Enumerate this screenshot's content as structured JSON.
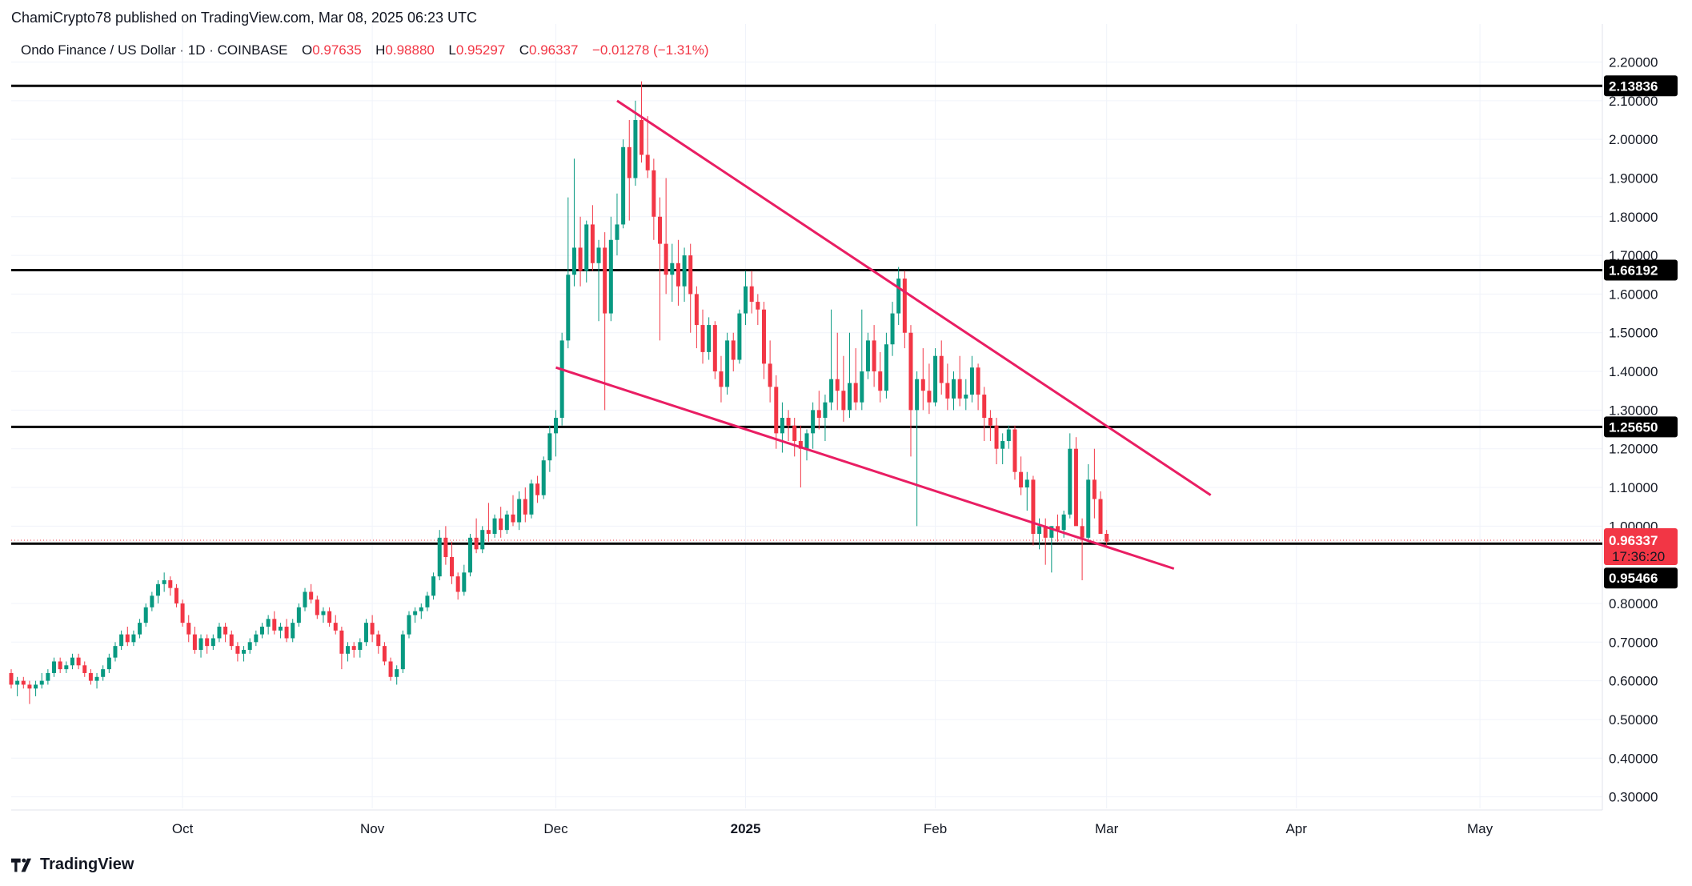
{
  "publisher": "ChamiCrypto78 published on TradingView.com, Mar 08, 2025 06:23 UTC",
  "legend": {
    "symbol": "Ondo Finance / US Dollar · 1D · COINBASE",
    "o_label": "O",
    "o_value": "0.97635",
    "h_label": "H",
    "h_value": "0.98880",
    "l_label": "L",
    "l_value": "0.95297",
    "c_label": "C",
    "c_value": "0.96337",
    "change": "−0.01278 (−1.31%)"
  },
  "footer": {
    "brand": "TradingView",
    "logo_icon": "tradingview-logo-icon"
  },
  "colors": {
    "up": "#089981",
    "down": "#f23645",
    "trendline": "#e91e63",
    "level": "#000000",
    "grid": "#f0f3fa"
  },
  "chart_data": {
    "type": "candlestick",
    "ylim": [
      0.25,
      2.25
    ],
    "y_ticks": [
      "2.20000",
      "2.10000",
      "2.00000",
      "1.90000",
      "1.80000",
      "1.70000",
      "1.60000",
      "1.50000",
      "1.40000",
      "1.30000",
      "1.20000",
      "1.10000",
      "1.00000",
      "0.80000",
      "0.70000",
      "0.60000",
      "0.50000",
      "0.40000",
      "0.30000"
    ],
    "y_tick_values": [
      2.2,
      2.1,
      2.0,
      1.9,
      1.8,
      1.7,
      1.6,
      1.5,
      1.4,
      1.3,
      1.2,
      1.1,
      1.0,
      0.8,
      0.7,
      0.6,
      0.5,
      0.4,
      0.3
    ],
    "x_ticks": [
      {
        "label": "Oct",
        "date": "2024-10-01"
      },
      {
        "label": "Nov",
        "date": "2024-11-01"
      },
      {
        "label": "Dec",
        "date": "2024-12-01"
      },
      {
        "label": "2025",
        "date": "2025-01-01"
      },
      {
        "label": "Feb",
        "date": "2025-02-01"
      },
      {
        "label": "Mar",
        "date": "2025-03-01"
      },
      {
        "label": "Apr",
        "date": "2025-04-01"
      },
      {
        "label": "May",
        "date": "2025-05-01"
      }
    ],
    "xlim": [
      "2024-09-03",
      "2025-05-21"
    ],
    "horizontal_levels": [
      {
        "value": 2.13836,
        "label": "2.13836"
      },
      {
        "value": 1.66192,
        "label": "1.66192"
      },
      {
        "value": 1.2565,
        "label": "1.25650"
      },
      {
        "value": 0.95466,
        "label": "0.95466"
      }
    ],
    "last_price": {
      "value": 0.96337,
      "label": "0.96337",
      "countdown": "17:36:20"
    },
    "trendlines": [
      {
        "name": "upper",
        "from": {
          "date": "2024-12-11",
          "price": 2.1
        },
        "to": {
          "date": "2025-03-18",
          "price": 1.08
        }
      },
      {
        "name": "lower",
        "from": {
          "date": "2024-12-01",
          "price": 1.41
        },
        "to": {
          "date": "2025-03-12",
          "price": 0.89
        }
      }
    ],
    "start_date": "2024-09-03",
    "candles": [
      [
        0.62,
        0.63,
        0.58,
        0.59
      ],
      [
        0.59,
        0.61,
        0.56,
        0.6
      ],
      [
        0.6,
        0.61,
        0.58,
        0.59
      ],
      [
        0.59,
        0.6,
        0.54,
        0.58
      ],
      [
        0.58,
        0.6,
        0.56,
        0.59
      ],
      [
        0.59,
        0.62,
        0.58,
        0.6
      ],
      [
        0.6,
        0.63,
        0.59,
        0.62
      ],
      [
        0.62,
        0.66,
        0.61,
        0.65
      ],
      [
        0.65,
        0.66,
        0.62,
        0.63
      ],
      [
        0.63,
        0.65,
        0.62,
        0.64
      ],
      [
        0.64,
        0.67,
        0.63,
        0.66
      ],
      [
        0.66,
        0.67,
        0.63,
        0.64
      ],
      [
        0.64,
        0.65,
        0.61,
        0.62
      ],
      [
        0.62,
        0.63,
        0.59,
        0.6
      ],
      [
        0.6,
        0.62,
        0.58,
        0.61
      ],
      [
        0.61,
        0.64,
        0.6,
        0.63
      ],
      [
        0.63,
        0.67,
        0.62,
        0.66
      ],
      [
        0.66,
        0.7,
        0.65,
        0.69
      ],
      [
        0.69,
        0.73,
        0.68,
        0.72
      ],
      [
        0.72,
        0.74,
        0.69,
        0.7
      ],
      [
        0.7,
        0.73,
        0.69,
        0.72
      ],
      [
        0.72,
        0.76,
        0.71,
        0.75
      ],
      [
        0.75,
        0.8,
        0.74,
        0.79
      ],
      [
        0.79,
        0.83,
        0.78,
        0.82
      ],
      [
        0.82,
        0.86,
        0.8,
        0.85
      ],
      [
        0.85,
        0.88,
        0.83,
        0.86
      ],
      [
        0.86,
        0.87,
        0.82,
        0.84
      ],
      [
        0.84,
        0.85,
        0.79,
        0.8
      ],
      [
        0.8,
        0.81,
        0.74,
        0.75
      ],
      [
        0.75,
        0.77,
        0.7,
        0.72
      ],
      [
        0.72,
        0.74,
        0.67,
        0.68
      ],
      [
        0.68,
        0.72,
        0.66,
        0.71
      ],
      [
        0.71,
        0.72,
        0.67,
        0.69
      ],
      [
        0.69,
        0.72,
        0.68,
        0.71
      ],
      [
        0.71,
        0.75,
        0.7,
        0.74
      ],
      [
        0.74,
        0.75,
        0.7,
        0.72
      ],
      [
        0.72,
        0.73,
        0.68,
        0.69
      ],
      [
        0.69,
        0.7,
        0.65,
        0.67
      ],
      [
        0.67,
        0.69,
        0.65,
        0.68
      ],
      [
        0.68,
        0.71,
        0.67,
        0.7
      ],
      [
        0.7,
        0.73,
        0.69,
        0.72
      ],
      [
        0.72,
        0.75,
        0.71,
        0.74
      ],
      [
        0.74,
        0.77,
        0.72,
        0.76
      ],
      [
        0.76,
        0.78,
        0.72,
        0.73
      ],
      [
        0.73,
        0.75,
        0.71,
        0.74
      ],
      [
        0.74,
        0.76,
        0.7,
        0.71
      ],
      [
        0.71,
        0.76,
        0.7,
        0.75
      ],
      [
        0.75,
        0.8,
        0.74,
        0.79
      ],
      [
        0.79,
        0.84,
        0.78,
        0.83
      ],
      [
        0.83,
        0.85,
        0.8,
        0.81
      ],
      [
        0.81,
        0.82,
        0.76,
        0.77
      ],
      [
        0.77,
        0.79,
        0.75,
        0.78
      ],
      [
        0.78,
        0.79,
        0.74,
        0.75
      ],
      [
        0.75,
        0.77,
        0.72,
        0.73
      ],
      [
        0.73,
        0.74,
        0.63,
        0.67
      ],
      [
        0.67,
        0.7,
        0.65,
        0.69
      ],
      [
        0.69,
        0.7,
        0.66,
        0.68
      ],
      [
        0.68,
        0.71,
        0.66,
        0.7
      ],
      [
        0.7,
        0.76,
        0.69,
        0.75
      ],
      [
        0.75,
        0.77,
        0.7,
        0.72
      ],
      [
        0.72,
        0.73,
        0.67,
        0.69
      ],
      [
        0.69,
        0.7,
        0.64,
        0.65
      ],
      [
        0.65,
        0.66,
        0.6,
        0.61
      ],
      [
        0.61,
        0.64,
        0.59,
        0.63
      ],
      [
        0.63,
        0.73,
        0.62,
        0.72
      ],
      [
        0.72,
        0.78,
        0.71,
        0.77
      ],
      [
        0.77,
        0.79,
        0.75,
        0.78
      ],
      [
        0.78,
        0.8,
        0.76,
        0.79
      ],
      [
        0.79,
        0.83,
        0.78,
        0.82
      ],
      [
        0.82,
        0.88,
        0.81,
        0.87
      ],
      [
        0.87,
        0.99,
        0.86,
        0.97
      ],
      [
        0.97,
        1.0,
        0.9,
        0.92
      ],
      [
        0.92,
        0.96,
        0.85,
        0.87
      ],
      [
        0.87,
        0.88,
        0.81,
        0.83
      ],
      [
        0.83,
        0.9,
        0.82,
        0.88
      ],
      [
        0.88,
        0.98,
        0.87,
        0.97
      ],
      [
        0.97,
        1.02,
        0.93,
        0.94
      ],
      [
        0.94,
        1.0,
        0.93,
        0.99
      ],
      [
        0.99,
        1.06,
        0.96,
        0.98
      ],
      [
        0.98,
        1.03,
        0.97,
        1.02
      ],
      [
        1.02,
        1.05,
        0.97,
        0.99
      ],
      [
        0.99,
        1.04,
        0.98,
        1.03
      ],
      [
        1.03,
        1.08,
        1.0,
        1.01
      ],
      [
        1.01,
        1.09,
        0.99,
        1.07
      ],
      [
        1.07,
        1.1,
        1.01,
        1.03
      ],
      [
        1.03,
        1.12,
        1.02,
        1.11
      ],
      [
        1.11,
        1.13,
        1.06,
        1.08
      ],
      [
        1.08,
        1.18,
        1.07,
        1.17
      ],
      [
        1.17,
        1.26,
        1.14,
        1.24
      ],
      [
        1.24,
        1.3,
        1.18,
        1.28
      ],
      [
        1.28,
        1.5,
        1.26,
        1.48
      ],
      [
        1.48,
        1.85,
        1.46,
        1.65
      ],
      [
        1.65,
        1.95,
        1.62,
        1.72
      ],
      [
        1.72,
        1.8,
        1.62,
        1.66
      ],
      [
        1.66,
        1.79,
        1.63,
        1.78
      ],
      [
        1.78,
        1.83,
        1.66,
        1.68
      ],
      [
        1.68,
        1.74,
        1.53,
        1.72
      ],
      [
        1.72,
        1.76,
        1.3,
        1.55
      ],
      [
        1.55,
        1.8,
        1.53,
        1.74
      ],
      [
        1.74,
        1.86,
        1.7,
        1.78
      ],
      [
        1.78,
        2.0,
        1.77,
        1.98
      ],
      [
        1.98,
        2.05,
        1.79,
        1.9
      ],
      [
        1.9,
        2.1,
        1.88,
        2.05
      ],
      [
        2.05,
        2.15,
        1.94,
        1.96
      ],
      [
        1.96,
        2.06,
        1.9,
        1.92
      ],
      [
        1.92,
        1.95,
        1.74,
        1.8
      ],
      [
        1.8,
        1.85,
        1.48,
        1.73
      ],
      [
        1.73,
        1.9,
        1.6,
        1.65
      ],
      [
        1.65,
        1.73,
        1.58,
        1.68
      ],
      [
        1.68,
        1.74,
        1.57,
        1.62
      ],
      [
        1.62,
        1.72,
        1.58,
        1.7
      ],
      [
        1.7,
        1.73,
        1.5,
        1.6
      ],
      [
        1.6,
        1.62,
        1.46,
        1.52
      ],
      [
        1.52,
        1.56,
        1.42,
        1.45
      ],
      [
        1.45,
        1.54,
        1.43,
        1.52
      ],
      [
        1.52,
        1.53,
        1.38,
        1.4
      ],
      [
        1.4,
        1.44,
        1.32,
        1.36
      ],
      [
        1.36,
        1.5,
        1.34,
        1.48
      ],
      [
        1.48,
        1.5,
        1.4,
        1.43
      ],
      [
        1.43,
        1.56,
        1.42,
        1.55
      ],
      [
        1.55,
        1.66,
        1.52,
        1.62
      ],
      [
        1.62,
        1.66,
        1.55,
        1.58
      ],
      [
        1.58,
        1.6,
        1.52,
        1.56
      ],
      [
        1.56,
        1.58,
        1.38,
        1.42
      ],
      [
        1.42,
        1.48,
        1.32,
        1.36
      ],
      [
        1.36,
        1.39,
        1.2,
        1.24
      ],
      [
        1.24,
        1.32,
        1.19,
        1.28
      ],
      [
        1.28,
        1.3,
        1.22,
        1.26
      ],
      [
        1.26,
        1.28,
        1.18,
        1.22
      ],
      [
        1.22,
        1.26,
        1.1,
        1.2
      ],
      [
        1.2,
        1.25,
        1.17,
        1.24
      ],
      [
        1.24,
        1.32,
        1.2,
        1.3
      ],
      [
        1.3,
        1.35,
        1.25,
        1.28
      ],
      [
        1.28,
        1.34,
        1.22,
        1.32
      ],
      [
        1.32,
        1.56,
        1.3,
        1.38
      ],
      [
        1.38,
        1.5,
        1.3,
        1.35
      ],
      [
        1.35,
        1.44,
        1.27,
        1.3
      ],
      [
        1.3,
        1.5,
        1.28,
        1.37
      ],
      [
        1.37,
        1.46,
        1.3,
        1.32
      ],
      [
        1.32,
        1.56,
        1.3,
        1.4
      ],
      [
        1.4,
        1.5,
        1.38,
        1.48
      ],
      [
        1.48,
        1.52,
        1.36,
        1.4
      ],
      [
        1.4,
        1.45,
        1.32,
        1.35
      ],
      [
        1.35,
        1.5,
        1.33,
        1.47
      ],
      [
        1.47,
        1.58,
        1.44,
        1.55
      ],
      [
        1.55,
        1.67,
        1.52,
        1.64
      ],
      [
        1.64,
        1.66,
        1.46,
        1.5
      ],
      [
        1.5,
        1.52,
        1.18,
        1.3
      ],
      [
        1.3,
        1.4,
        1.0,
        1.38
      ],
      [
        1.38,
        1.46,
        1.3,
        1.35
      ],
      [
        1.35,
        1.42,
        1.29,
        1.32
      ],
      [
        1.32,
        1.46,
        1.31,
        1.44
      ],
      [
        1.44,
        1.48,
        1.34,
        1.37
      ],
      [
        1.37,
        1.42,
        1.3,
        1.33
      ],
      [
        1.33,
        1.4,
        1.3,
        1.38
      ],
      [
        1.38,
        1.44,
        1.31,
        1.33
      ],
      [
        1.33,
        1.38,
        1.3,
        1.34
      ],
      [
        1.34,
        1.44,
        1.32,
        1.41
      ],
      [
        1.41,
        1.42,
        1.3,
        1.34
      ],
      [
        1.34,
        1.36,
        1.22,
        1.28
      ],
      [
        1.28,
        1.3,
        1.22,
        1.26
      ],
      [
        1.26,
        1.28,
        1.16,
        1.2
      ],
      [
        1.2,
        1.24,
        1.16,
        1.22
      ],
      [
        1.22,
        1.26,
        1.2,
        1.25
      ],
      [
        1.25,
        1.26,
        1.12,
        1.14
      ],
      [
        1.14,
        1.18,
        1.08,
        1.1
      ],
      [
        1.1,
        1.14,
        1.04,
        1.12
      ],
      [
        1.12,
        1.13,
        0.95,
        0.98
      ],
      [
        0.98,
        1.02,
        0.94,
        1.0
      ],
      [
        1.0,
        1.02,
        0.9,
        0.97
      ],
      [
        0.97,
        1.0,
        0.88,
        1.0
      ],
      [
        1.0,
        1.03,
        0.96,
        0.99
      ],
      [
        0.99,
        1.04,
        0.97,
        1.03
      ],
      [
        1.03,
        1.24,
        1.02,
        1.2
      ],
      [
        1.2,
        1.23,
        1.01,
        1.0
      ],
      [
        1.0,
        1.02,
        0.86,
        0.97
      ],
      [
        0.97,
        1.16,
        0.96,
        1.12
      ],
      [
        1.12,
        1.2,
        1.02,
        1.07
      ],
      [
        1.07,
        1.09,
        0.98,
        0.98
      ],
      [
        0.98,
        0.99,
        0.95,
        0.96
      ]
    ]
  }
}
